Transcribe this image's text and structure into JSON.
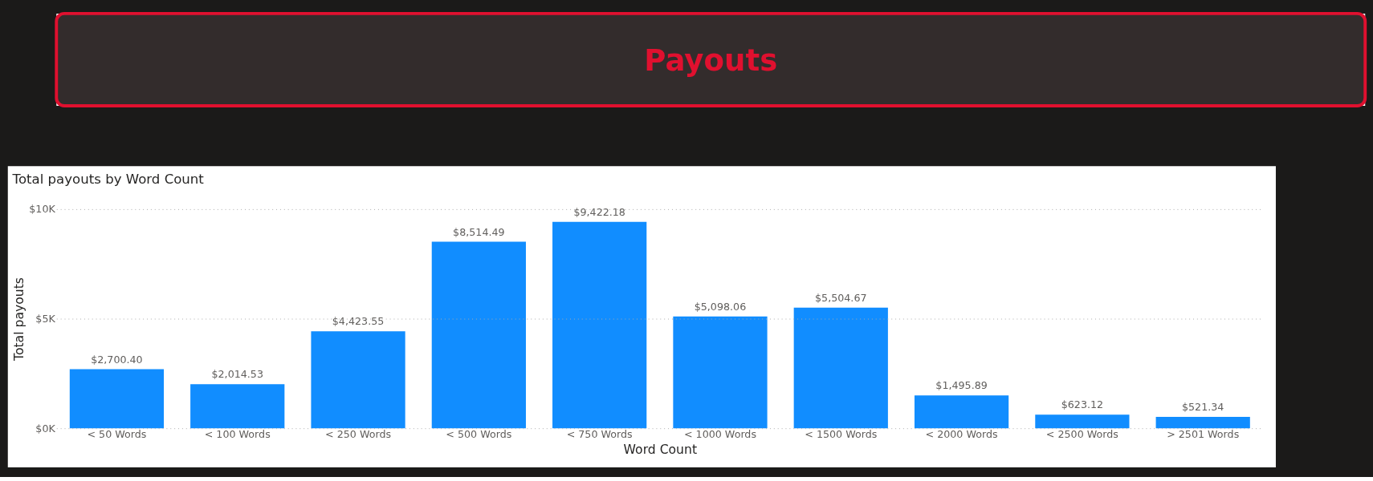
{
  "chart_data": {
    "type": "bar",
    "title": "Payouts",
    "subtitle": "Total payouts by Word Count",
    "xlabel": "Word Count",
    "ylabel": "Total payouts",
    "categories": [
      "< 50 Words",
      "< 100 Words",
      "< 250 Words",
      "< 500 Words",
      "< 750 Words",
      "< 1000 Words",
      "< 1500 Words",
      "< 2000 Words",
      "< 2500 Words",
      "> 2501 Words"
    ],
    "values": [
      2700.4,
      2014.53,
      4423.55,
      8514.49,
      9422.18,
      5098.06,
      5504.67,
      1495.89,
      623.12,
      521.34
    ],
    "value_labels": [
      "$2,700.40",
      "$2,014.53",
      "$4,423.55",
      "$8,514.49",
      "$9,422.18",
      "$5,098.06",
      "$5,504.67",
      "$1,495.89",
      "$623.12",
      "$521.34"
    ],
    "color": "#118dff",
    "ylim": [
      0,
      10000
    ],
    "yticks": [
      {
        "value": 0,
        "label": "$0K"
      },
      {
        "value": 5000,
        "label": "$5K"
      },
      {
        "value": 10000,
        "label": "$10K"
      }
    ],
    "grid": "y"
  }
}
